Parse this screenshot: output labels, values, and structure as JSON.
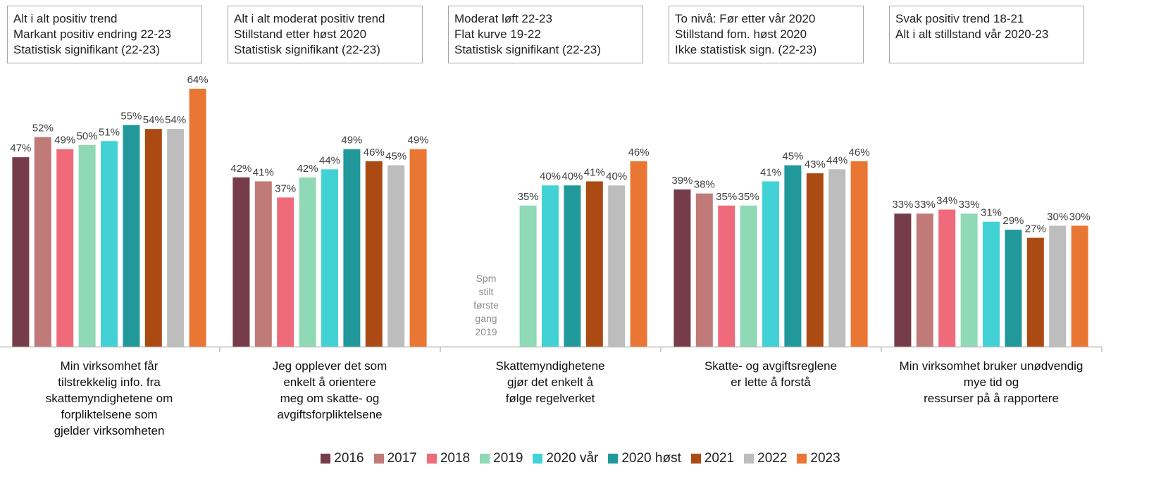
{
  "chart_data": {
    "type": "bar",
    "annotations": [
      "Alt i alt positiv trend\nMarkant positiv endring 22-23\nStatistisk signifikant (22-23)",
      "Alt i alt moderat positiv trend\nStillstand etter høst 2020\nStatistisk signifikant (22-23)",
      "Moderat løft 22-23\nFlat kurve 19-22\nStatistisk signifikant (22-23)",
      "To nivå: Før etter vår 2020\nStillstand fom. høst 2020\nIkke statistisk sign. (22-23)",
      "Svak positiv trend 18-21\nAlt i alt stillstand vår 2020-23"
    ],
    "note": "Spm\nstilt\nførste\ngang\n2019",
    "categories": [
      "Min virksomhet får\ntilstrekkelig info. fra\nskattemyndighetene om\nforpliktelsene som\ngjelder virksomheten",
      "Jeg opplever det som\nenkelt å orientere\nmeg om skatte- og\navgiftsforpliktelsene",
      "Skattemyndighetene\ngjør det enkelt å\nfølge regelverket",
      "Skatte- og avgiftsreglene\ner lette å forstå",
      "Min virksomhet bruker unødvendig\nmye tid og\nressurser på å rapportere"
    ],
    "series": [
      {
        "name": "2016",
        "color": "#763c4a",
        "values": [
          47,
          42,
          null,
          39,
          33
        ],
        "value_labels": [
          "47%",
          "42%",
          null,
          "39%",
          "33%"
        ]
      },
      {
        "name": "2017",
        "color": "#c07a78",
        "values": [
          52,
          41,
          null,
          38,
          33
        ],
        "value_labels": [
          "52%",
          "41%",
          null,
          "38%",
          "33%"
        ]
      },
      {
        "name": "2018",
        "color": "#ef6a7a",
        "values": [
          49,
          37,
          null,
          35,
          34
        ],
        "value_labels": [
          "49%",
          "37%",
          null,
          "35%",
          "34%"
        ]
      },
      {
        "name": "2019",
        "color": "#8fd9b6",
        "values": [
          50,
          42,
          35,
          35,
          33
        ],
        "value_labels": [
          "50%",
          "42%",
          "35%",
          "35%",
          "33%"
        ]
      },
      {
        "name": "2020 vår",
        "color": "#42d2d6",
        "values": [
          51,
          44,
          40,
          41,
          31
        ],
        "value_labels": [
          "51%",
          "44%",
          "40%",
          "41%",
          "31%"
        ]
      },
      {
        "name": "2020 høst",
        "color": "#21999a",
        "values": [
          55,
          49,
          40,
          45,
          29
        ],
        "value_labels": [
          "55%",
          "49%",
          "40%",
          "45%",
          "29%"
        ]
      },
      {
        "name": "2021",
        "color": "#ac4a14",
        "values": [
          54,
          46,
          41,
          43,
          27
        ],
        "value_labels": [
          "54%",
          "46%",
          "41%",
          "43%",
          "27%"
        ]
      },
      {
        "name": "2022",
        "color": "#bdbdbd",
        "values": [
          54,
          45,
          40,
          44,
          30
        ],
        "value_labels": [
          "54%",
          "45%",
          "40%",
          "44%",
          "30%"
        ]
      },
      {
        "name": "2023",
        "color": "#ea7634",
        "values": [
          64,
          49,
          46,
          46,
          30
        ],
        "value_labels": [
          "64%",
          "49%",
          "46%",
          "46%",
          "30%"
        ]
      }
    ]
  }
}
